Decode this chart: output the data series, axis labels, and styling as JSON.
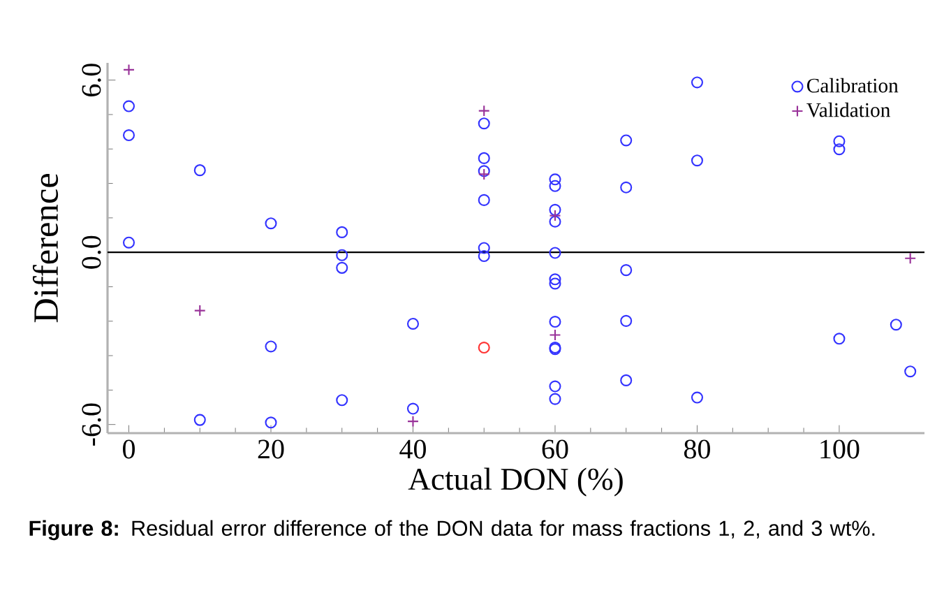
{
  "chart_data": {
    "type": "scatter",
    "xlabel": "Actual DON (%)",
    "ylabel": "Difference",
    "xlim": [
      -3,
      112
    ],
    "ylim": [
      -6.3,
      6.6
    ],
    "xticks": [
      0,
      20,
      40,
      60,
      80,
      100
    ],
    "yticks": [
      {
        "value": -6,
        "label": "-6.0"
      },
      {
        "value": 0,
        "label": "0.0"
      },
      {
        "value": 6,
        "label": "6.0"
      }
    ],
    "grid": false,
    "legend": "top right",
    "ref_lines": [
      {
        "axis": "y",
        "value": 0,
        "color": "#000000"
      }
    ],
    "annotations": [
      "**Figure 8:** Residual error difference of the DON data for mass fractions 1, 2, and 3 wt%."
    ],
    "series": [
      {
        "name": "Calibration",
        "marker": "circle",
        "color": "#3333ff",
        "x": [
          0,
          0,
          0,
          10,
          10,
          20,
          20,
          20,
          30,
          30,
          30,
          30,
          40,
          40,
          50,
          50,
          50,
          50,
          50,
          50,
          50,
          60,
          60,
          60,
          60,
          60,
          60,
          60,
          60,
          60,
          60,
          60,
          60,
          70,
          70,
          70,
          70,
          70,
          80,
          80,
          80,
          100,
          100,
          100,
          108,
          110
        ],
        "values": [
          5.09,
          4.08,
          0.34,
          2.86,
          -5.84,
          1.01,
          -3.28,
          -5.93,
          0.7,
          -0.1,
          -0.54,
          -5.15,
          -2.49,
          -5.45,
          4.49,
          3.28,
          2.83,
          1.82,
          0.15,
          -0.13,
          -3.32,
          2.54,
          2.31,
          1.48,
          1.07,
          -0.02,
          -0.94,
          -1.09,
          -2.42,
          -3.32,
          -3.37,
          -4.67,
          -5.11,
          3.9,
          2.26,
          -0.62,
          -2.39,
          -4.46,
          5.92,
          3.2,
          -5.06,
          3.87,
          3.59,
          -3.01,
          -2.52,
          -4.15
        ],
        "colors": [
          "#3333ff",
          "#3333ff",
          "#3333ff",
          "#3333ff",
          "#3333ff",
          "#3333ff",
          "#3333ff",
          "#3333ff",
          "#3333ff",
          "#3333ff",
          "#3333ff",
          "#3333ff",
          "#3333ff",
          "#3333ff",
          "#3333ff",
          "#3333ff",
          "#3333ff",
          "#3333ff",
          "#3333ff",
          "#3333ff",
          "#ff3333",
          "#3333ff",
          "#3333ff",
          "#3333ff",
          "#3333ff",
          "#3333ff",
          "#3333ff",
          "#3333ff",
          "#3333ff",
          "#3333ff",
          "#3333ff",
          "#3333ff",
          "#3333ff",
          "#3333ff",
          "#3333ff",
          "#3333ff",
          "#3333ff",
          "#3333ff",
          "#3333ff",
          "#3333ff",
          "#3333ff",
          "#3333ff",
          "#3333ff",
          "#3333ff",
          "#3333ff",
          "#3333ff"
        ]
      },
      {
        "name": "Validation",
        "marker": "cross",
        "color": "#993399",
        "x": [
          0,
          10,
          40,
          50,
          50,
          60,
          60,
          110
        ],
        "values": [
          6.36,
          -2.03,
          -5.89,
          4.93,
          2.72,
          1.28,
          -2.88,
          -0.21
        ]
      }
    ]
  }
}
